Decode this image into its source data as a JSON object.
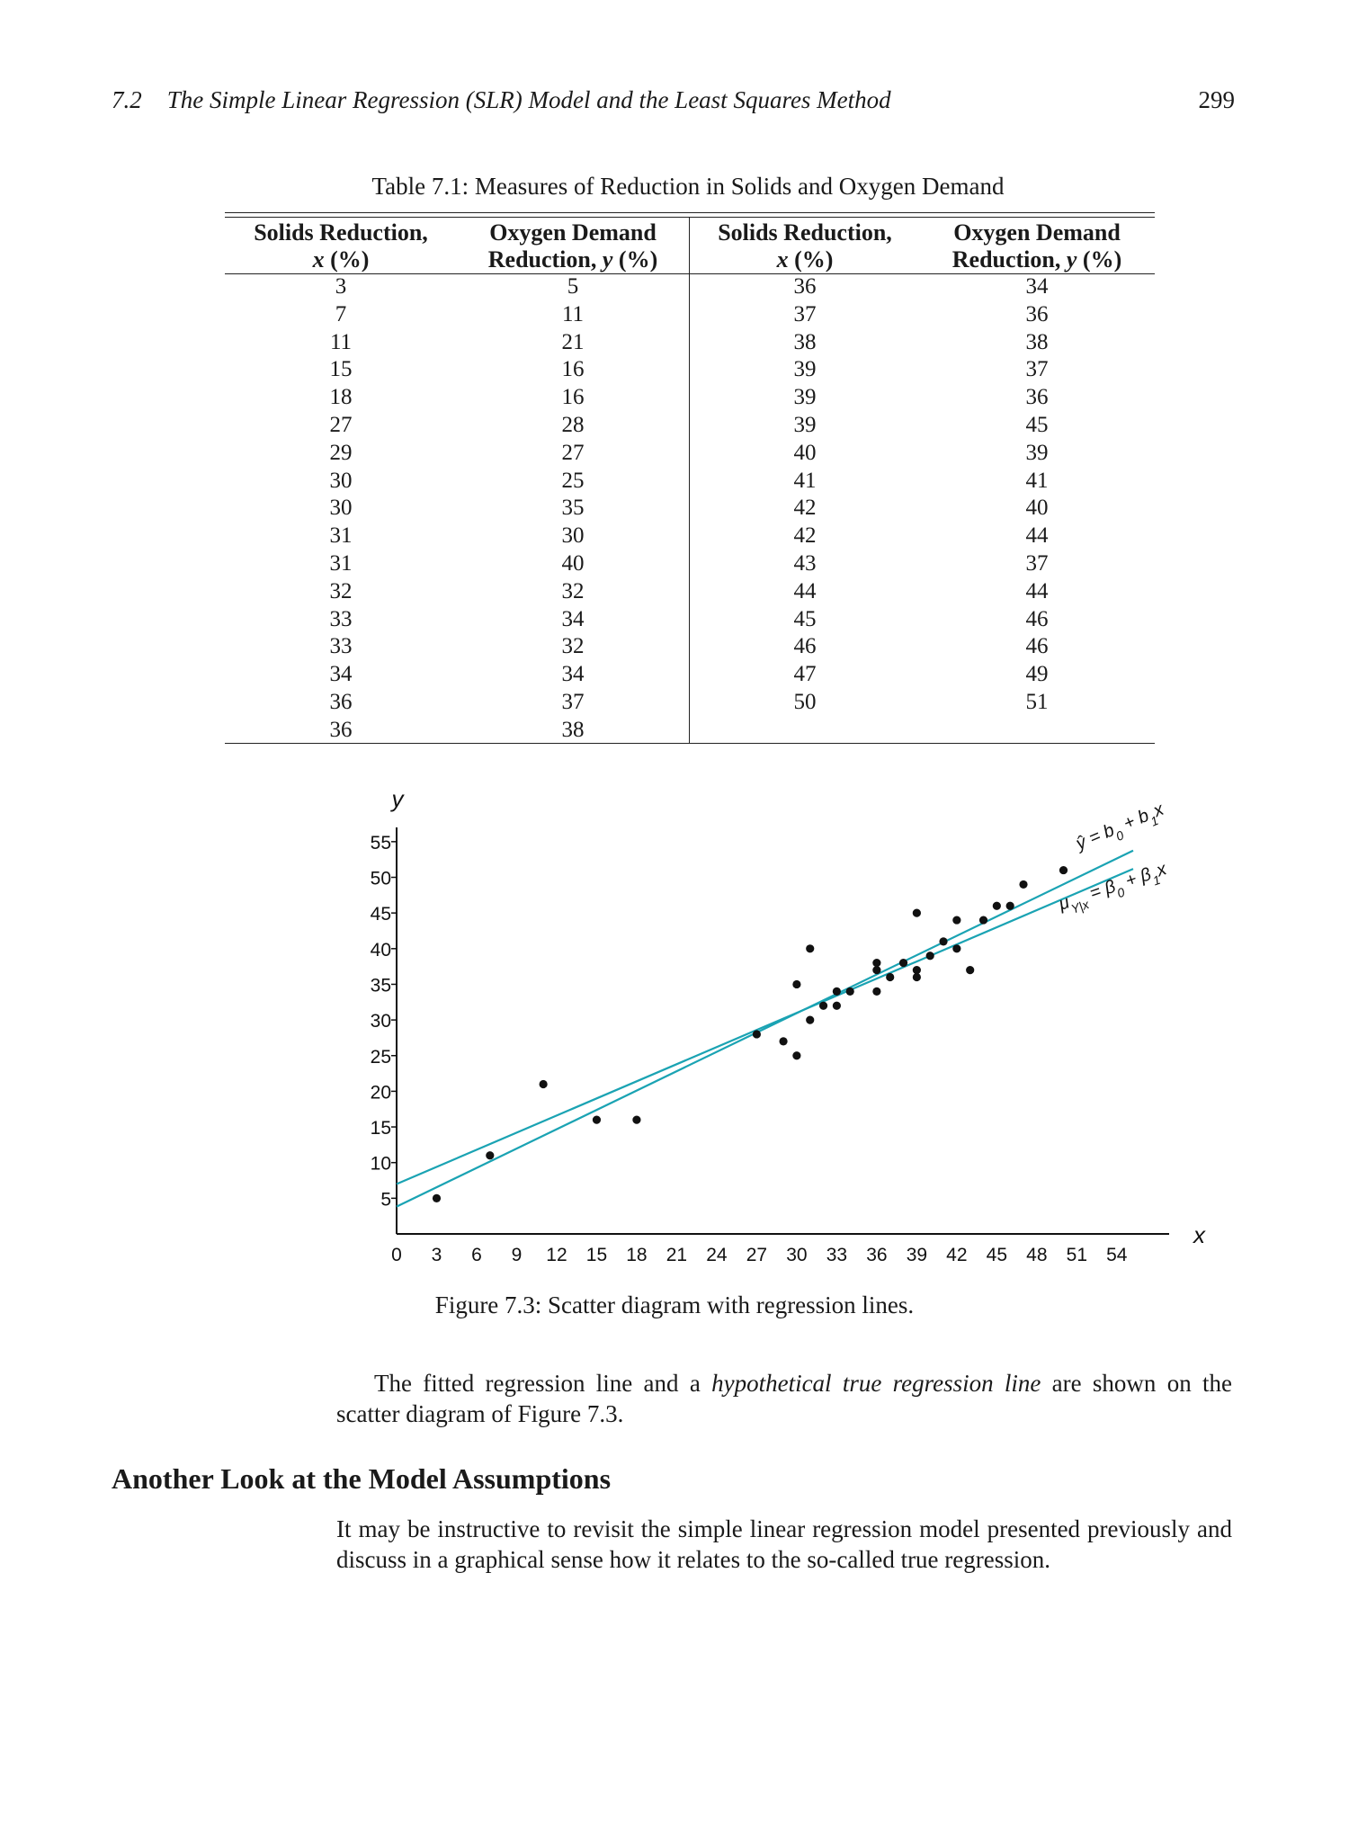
{
  "header": {
    "section_number": "7.2",
    "section_title": "The Simple Linear Regression (SLR) Model and the Least Squares Method",
    "page_number": "299"
  },
  "table": {
    "caption": "Table 7.1: Measures of Reduction in Solids and Oxygen Demand",
    "headers": [
      {
        "line1": "Solids Reduction,",
        "line2_var": "x",
        "line2_unit": " (%)"
      },
      {
        "line1": "Oxygen Demand",
        "line2_text": "Reduction, ",
        "line2_var": "y",
        "line2_unit": " (%)"
      },
      {
        "line1": "Solids Reduction,",
        "line2_var": "x",
        "line2_unit": " (%)"
      },
      {
        "line1": "Oxygen Demand",
        "line2_text": "Reduction, ",
        "line2_var": "y",
        "line2_unit": " (%)"
      }
    ],
    "col1_x": [
      "3",
      "7",
      "11",
      "15",
      "18",
      "27",
      "29",
      "30",
      "30",
      "31",
      "31",
      "32",
      "33",
      "33",
      "34",
      "36",
      "36"
    ],
    "col1_y": [
      "5",
      "11",
      "21",
      "16",
      "16",
      "28",
      "27",
      "25",
      "35",
      "30",
      "40",
      "32",
      "34",
      "32",
      "34",
      "37",
      "38"
    ],
    "col2_x": [
      "36",
      "37",
      "38",
      "39",
      "39",
      "39",
      "40",
      "41",
      "42",
      "42",
      "43",
      "44",
      "45",
      "46",
      "47",
      "50"
    ],
    "col2_y": [
      "34",
      "36",
      "38",
      "37",
      "36",
      "45",
      "39",
      "41",
      "40",
      "44",
      "37",
      "44",
      "46",
      "46",
      "49",
      "51"
    ]
  },
  "chart_data": {
    "type": "scatter",
    "xlabel": "x",
    "ylabel": "y",
    "xlim": [
      0,
      55
    ],
    "ylim": [
      0,
      57
    ],
    "xticks": [
      0,
      3,
      6,
      9,
      12,
      15,
      18,
      21,
      24,
      27,
      30,
      33,
      36,
      39,
      42,
      45,
      48,
      51,
      54
    ],
    "yticks": [
      5,
      10,
      15,
      20,
      25,
      30,
      35,
      40,
      45,
      50,
      55
    ],
    "points": [
      [
        3,
        5
      ],
      [
        7,
        11
      ],
      [
        11,
        21
      ],
      [
        15,
        16
      ],
      [
        18,
        16
      ],
      [
        27,
        28
      ],
      [
        29,
        27
      ],
      [
        30,
        25
      ],
      [
        30,
        35
      ],
      [
        31,
        30
      ],
      [
        31,
        40
      ],
      [
        32,
        32
      ],
      [
        33,
        34
      ],
      [
        33,
        32
      ],
      [
        34,
        34
      ],
      [
        36,
        37
      ],
      [
        36,
        38
      ],
      [
        36,
        34
      ],
      [
        37,
        36
      ],
      [
        38,
        38
      ],
      [
        39,
        37
      ],
      [
        39,
        36
      ],
      [
        39,
        45
      ],
      [
        40,
        39
      ],
      [
        41,
        41
      ],
      [
        42,
        40
      ],
      [
        42,
        44
      ],
      [
        43,
        37
      ],
      [
        44,
        44
      ],
      [
        45,
        46
      ],
      [
        46,
        46
      ],
      [
        47,
        49
      ],
      [
        50,
        51
      ]
    ],
    "lines": [
      {
        "label_parts": [
          "ŷ = b",
          "0",
          " + b",
          "1",
          "x"
        ],
        "intercept": 3.83,
        "slope": 0.904,
        "color": "#1aa3b3"
      },
      {
        "label_parts": [
          "μ",
          "Y|x",
          " = β",
          "0",
          " + β",
          "1",
          "x"
        ],
        "intercept": 7.0,
        "slope": 0.8,
        "color": "#1aa3b3"
      }
    ]
  },
  "figure": {
    "caption": "Figure 7.3: Scatter diagram with regression lines."
  },
  "body": {
    "p1_a": "The fitted regression line and a ",
    "p1_em": "hypothetical true regression line",
    "p1_b": " are shown on the scatter diagram of Figure 7.3.",
    "section_heading": "Another Look at the Model Assumptions",
    "p2": "It may be instructive to revisit the simple linear regression model presented previously and discuss in a graphical sense how it relates to the so-called true regression."
  }
}
